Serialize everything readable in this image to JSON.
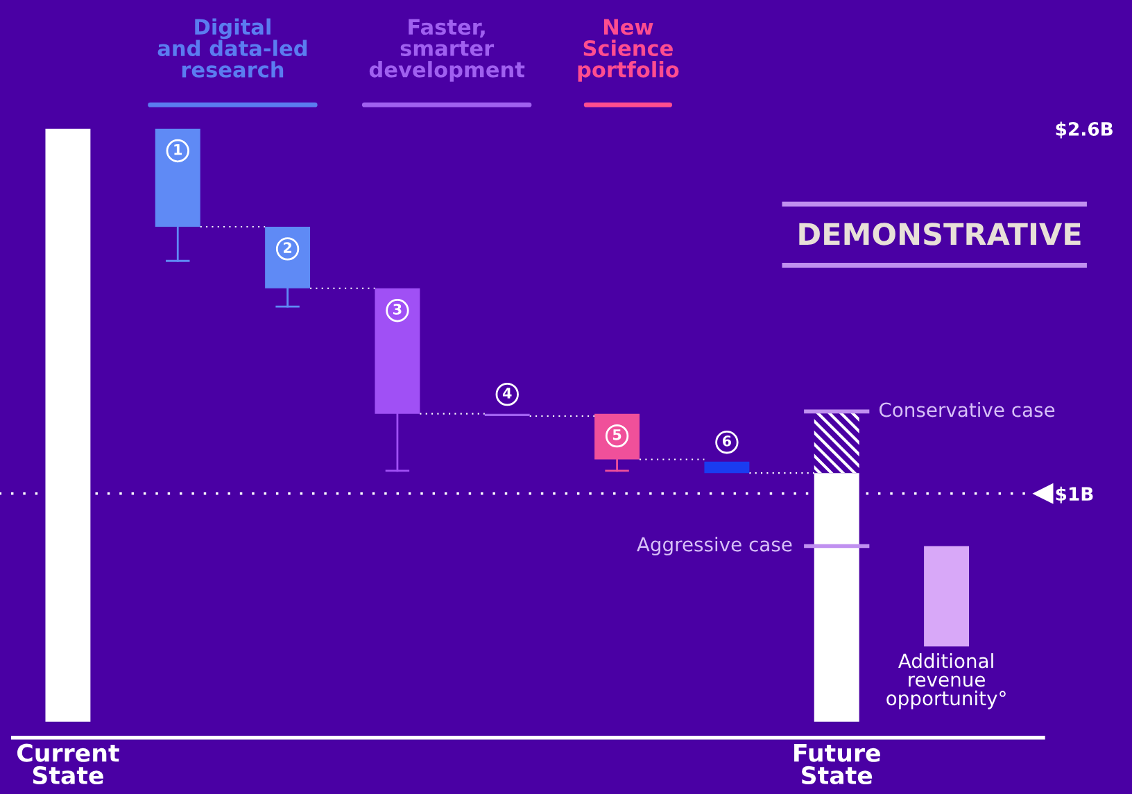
{
  "chart_data": {
    "type": "bar",
    "categories": [
      "Current State",
      null,
      null,
      null,
      null,
      null,
      null,
      "Future State",
      null
    ],
    "series": [
      {
        "color": "#ffffff",
        "values": [
          2.6,
          null,
          null,
          null,
          null,
          null,
          null,
          1.09,
          null
        ]
      },
      {
        "colors": [
          null,
          "#5f8af5",
          "#5f8af5",
          "#a050f5",
          "#a060f0",
          "#f0509a",
          "#1a3cf0",
          null,
          null
        ],
        "base": [
          null,
          2.6,
          2.17,
          1.9,
          1.35,
          1.35,
          1.14,
          null,
          null
        ],
        "values": [
          null,
          -0.43,
          -0.27,
          -0.55,
          -0.01,
          -0.2,
          -0.05,
          null,
          null
        ],
        "errors": [
          null,
          [
            2.02,
            2.17
          ],
          [
            1.82,
            1.9
          ],
          [
            1.1,
            1.35
          ],
          null,
          [
            1.1,
            1.15
          ],
          null,
          null,
          null
        ]
      },
      {
        "color": "#ffffff",
        "base": [
          null,
          null,
          null,
          null,
          null,
          null,
          null,
          1.09,
          null
        ],
        "values": [
          null,
          null,
          null,
          null,
          null,
          null,
          null,
          0.27,
          null
        ]
      },
      {
        "color": "#d8a8f8",
        "base": [
          null,
          null,
          null,
          null,
          null,
          null,
          null,
          null,
          0.33
        ],
        "values": [
          null,
          null,
          null,
          null,
          null,
          null,
          null,
          null,
          0.44
        ]
      }
    ],
    "ylim": [
      -0.07,
      2.6
    ],
    "yticks": [
      {
        "value": 1,
        "label": "$1B"
      },
      {
        "value": 2.6,
        "label": "$2.6B"
      }
    ],
    "ref_lines": [
      {
        "axis": "y",
        "value": 1,
        "color": "#ffffff",
        "line_style": "dotted"
      },
      {
        "axis": "y",
        "value": 1.36,
        "label": "Conservative case",
        "color": "#c090f0",
        "line_style": "solid"
      },
      {
        "axis": "y",
        "value": 0.77,
        "label": "Aggressive case",
        "color": "#c090f0",
        "line_style": "solid"
      }
    ],
    "annotations": [
      "Digital\nand data-led\nresearch",
      "Faster,\nsmarter\ndevelopment",
      "New\nScience\nportfolio",
      "DEMONSTRATIVE",
      "1",
      "2",
      "3",
      "4",
      "5",
      "6",
      "Additional\nrevenue\nopportunity°"
    ]
  }
}
